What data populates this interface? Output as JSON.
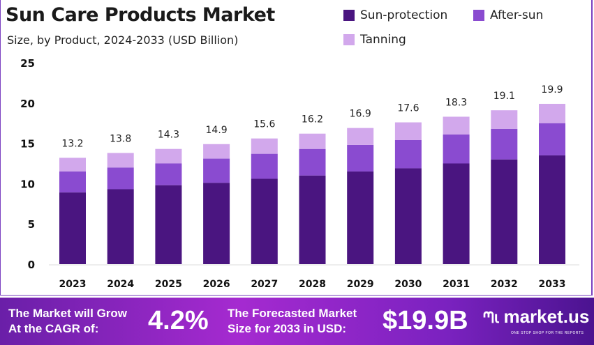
{
  "chart_data": {
    "type": "bar",
    "stacked": true,
    "title": "Sun Care Products Market",
    "subtitle": "Size, by Product, 2024-2033 (USD Billion)",
    "categories": [
      "2023",
      "2024",
      "2025",
      "2026",
      "2027",
      "2028",
      "2029",
      "2030",
      "2031",
      "2032",
      "2033"
    ],
    "series": [
      {
        "name": "Sun-protection",
        "color": "#4a1580",
        "values": [
          8.9,
          9.3,
          9.8,
          10.1,
          10.6,
          11.0,
          11.5,
          11.9,
          12.5,
          13.0,
          13.5
        ]
      },
      {
        "name": "After-sun",
        "color": "#8a4bd0",
        "values": [
          2.6,
          2.7,
          2.7,
          3.0,
          3.1,
          3.3,
          3.3,
          3.5,
          3.6,
          3.8,
          4.0
        ]
      },
      {
        "name": "Tanning",
        "color": "#d2a8ec",
        "values": [
          1.7,
          1.8,
          1.8,
          1.8,
          1.9,
          1.9,
          2.1,
          2.2,
          2.2,
          2.3,
          2.4
        ]
      }
    ],
    "totals": [
      "13.2",
      "13.8",
      "14.3",
      "14.9",
      "15.6",
      "16.2",
      "16.9",
      "17.6",
      "18.3",
      "19.1",
      "19.9"
    ],
    "yticks": [
      "0",
      "5",
      "10",
      "15",
      "20",
      "25"
    ],
    "ylim": [
      0,
      25
    ],
    "grid": false,
    "legend": "top-right"
  },
  "footer": {
    "cagr_text_1": "The Market will Grow",
    "cagr_text_2": "At the CAGR of:",
    "cagr_value": "4.2%",
    "forecast_text_1": "The Forecasted Market",
    "forecast_text_2": "Size for 2033 in USD:",
    "forecast_value": "$19.9B",
    "brand": "market.us",
    "tagline": "ONE STOP SHOP FOR THE REPORTS"
  }
}
